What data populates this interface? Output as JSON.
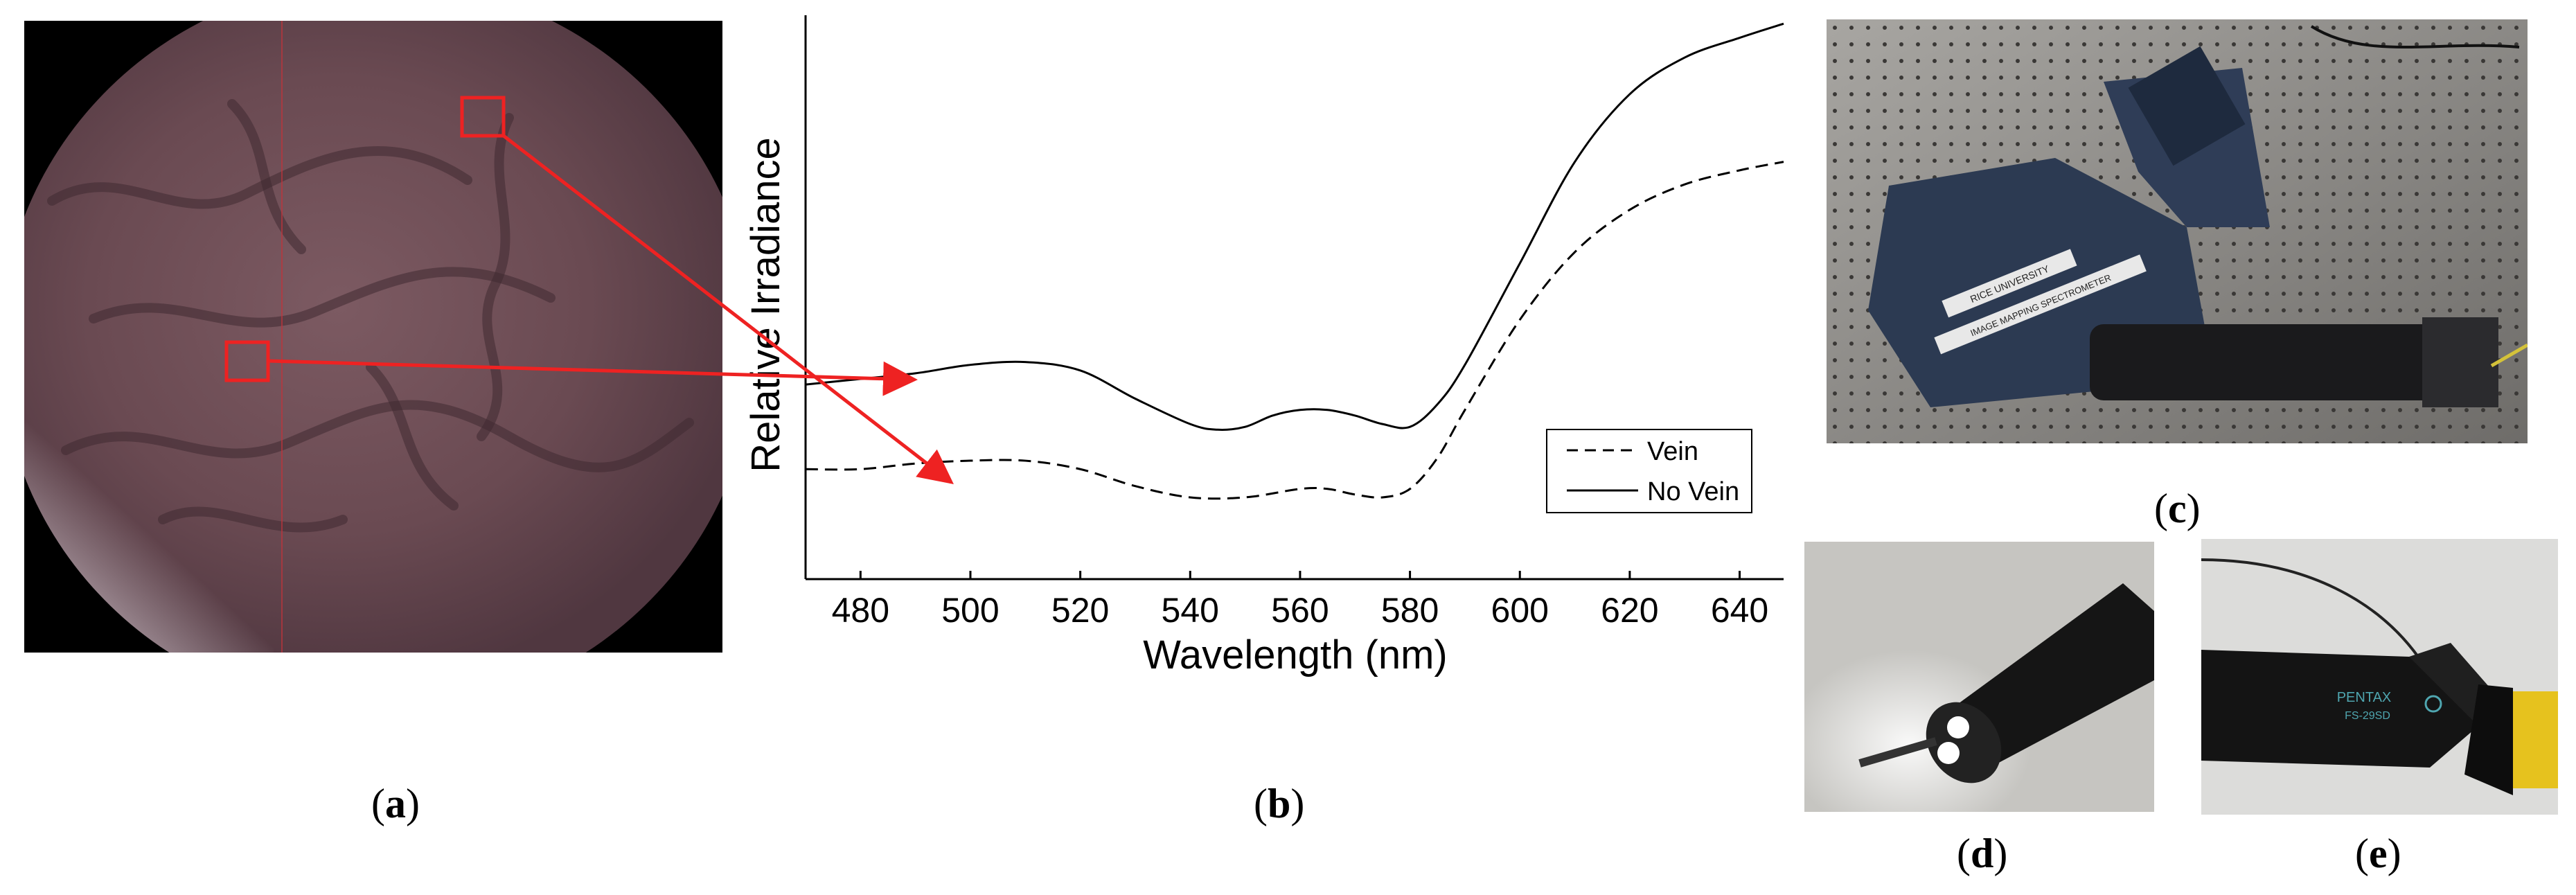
{
  "captions": {
    "a": {
      "open": "(",
      "letter": "a",
      "close": ")"
    },
    "b": {
      "open": "(",
      "letter": "b",
      "close": ")"
    },
    "c": {
      "open": "(",
      "letter": "c",
      "close": ")"
    },
    "d": {
      "open": "(",
      "letter": "d",
      "close": ")"
    },
    "e": {
      "open": "(",
      "letter": "e",
      "close": ")"
    }
  },
  "photo_text": {
    "spectrometer_label_1": "RICE UNIVERSITY",
    "spectrometer_label_2": "IMAGE MAPPING SPECTROMETER",
    "scope_brand": "PENTAX",
    "scope_model": "FS-29SD"
  },
  "colors": {
    "annotation_red": "#ee2222",
    "curve": "#000000"
  },
  "chart_data": {
    "type": "line",
    "title": "",
    "xlabel": "Wavelength (nm)",
    "ylabel": "Relative Irradiance",
    "xlim": [
      470,
      648
    ],
    "ylim": [
      0,
      1
    ],
    "x_ticks": [
      480,
      500,
      520,
      540,
      560,
      580,
      600,
      620,
      640
    ],
    "x_tick_labels": [
      "480",
      "500",
      "520",
      "540",
      "560",
      "580",
      "600",
      "620",
      "640"
    ],
    "y_ticks_shown": false,
    "legend_position": "bottom-right",
    "series": [
      {
        "name": "Vein",
        "style": "dashed",
        "x": [
          470,
          480,
          490,
          500,
          510,
          520,
          530,
          540,
          550,
          560,
          565,
          570,
          575,
          580,
          585,
          590,
          600,
          610,
          620,
          630,
          640,
          648
        ],
        "y": [
          0.195,
          0.195,
          0.205,
          0.21,
          0.21,
          0.195,
          0.165,
          0.145,
          0.145,
          0.16,
          0.16,
          0.15,
          0.145,
          0.16,
          0.215,
          0.3,
          0.46,
          0.58,
          0.655,
          0.7,
          0.725,
          0.74
        ]
      },
      {
        "name": "No Vein",
        "style": "solid",
        "x": [
          470,
          480,
          490,
          500,
          510,
          520,
          530,
          540,
          545,
          550,
          555,
          560,
          565,
          570,
          575,
          580,
          585,
          590,
          600,
          610,
          620,
          630,
          640,
          648
        ],
        "y": [
          0.345,
          0.355,
          0.365,
          0.38,
          0.385,
          0.37,
          0.32,
          0.275,
          0.265,
          0.27,
          0.29,
          0.3,
          0.3,
          0.29,
          0.275,
          0.27,
          0.31,
          0.38,
          0.56,
          0.74,
          0.86,
          0.925,
          0.96,
          0.985
        ]
      }
    ],
    "annotations": [
      {
        "type": "arrow",
        "from": "panel (a) upper red box",
        "to": "Vein curve region"
      },
      {
        "type": "arrow",
        "from": "panel (a) middle red box",
        "to": "No Vein curve region"
      }
    ]
  }
}
